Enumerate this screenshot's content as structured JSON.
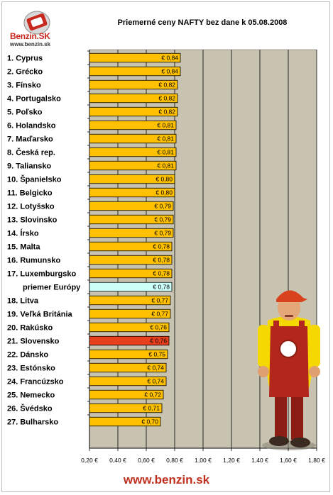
{
  "logo": {
    "brand": "Benzin.SK",
    "url": "www.benzin.sk"
  },
  "footer": {
    "url": "www.benzin.sk"
  },
  "colors": {
    "bar": "#ffc000",
    "bar_highlight": "#e8401c",
    "bar_average": "#ccfff8",
    "plot_bg": "#c7c3b0",
    "label_highlight": "#e8401c",
    "label_average": "#6aa6d6"
  },
  "chart_data": {
    "type": "bar",
    "orientation": "horizontal",
    "title": "Priemerné ceny NAFTY bez dane k 05.08.2008",
    "categories": [
      "1. Cyprus",
      "2. Grécko",
      "3. Fínsko",
      "4. Portugalsko",
      "5. Poľsko",
      "6. Holandsko",
      "7. Maďarsko",
      "8. Česká rep.",
      "9. Taliansko",
      "10. Španielsko",
      "11. Belgicko",
      "12. Lotyšsko",
      "13. Slovinsko",
      "14. Írsko",
      "15. Malta",
      "16. Rumunsko",
      "17. Luxemburgsko",
      "priemer Európy",
      "18. Litva",
      "19. Veľká Británia",
      "20. Rakúsko",
      "21. Slovensko",
      "22. Dánsko",
      "23. Estónsko",
      "24. Francúzsko",
      "25. Nemecko",
      "26. Švédsko",
      "27. Bulharsko"
    ],
    "values": [
      0.84,
      0.84,
      0.82,
      0.82,
      0.82,
      0.81,
      0.81,
      0.81,
      0.81,
      0.8,
      0.8,
      0.79,
      0.79,
      0.79,
      0.78,
      0.78,
      0.78,
      0.78,
      0.77,
      0.77,
      0.76,
      0.76,
      0.75,
      0.74,
      0.74,
      0.72,
      0.71,
      0.7
    ],
    "value_labels": [
      "€ 0,84",
      "€ 0,84",
      "€ 0,82",
      "€ 0,82",
      "€ 0,82",
      "€ 0,81",
      "€ 0,81",
      "€ 0,81",
      "€ 0,81",
      "€ 0,80",
      "€ 0,80",
      "€ 0,79",
      "€ 0,79",
      "€ 0,79",
      "€ 0,78",
      "€ 0,78",
      "€ 0,78",
      "€ 0,78",
      "€ 0,77",
      "€ 0,77",
      "€ 0,76",
      "€ 0,76",
      "€ 0,75",
      "€ 0,74",
      "€ 0,74",
      "€ 0,72",
      "€ 0,71",
      "€ 0,70"
    ],
    "highlight_index": 21,
    "average_index": 17,
    "xlim": [
      0.2,
      1.8
    ],
    "xticks": [
      0.2,
      0.4,
      0.6,
      0.8,
      1.0,
      1.2,
      1.4,
      1.6,
      1.8
    ],
    "xtick_labels": [
      "0,20 €",
      "0,40 €",
      "0,60 €",
      "0,80 €",
      "1,00 €",
      "1,20 €",
      "1,40 €",
      "1,60 €",
      "1,80 €"
    ],
    "grid": true,
    "xlabel": "",
    "ylabel": ""
  }
}
